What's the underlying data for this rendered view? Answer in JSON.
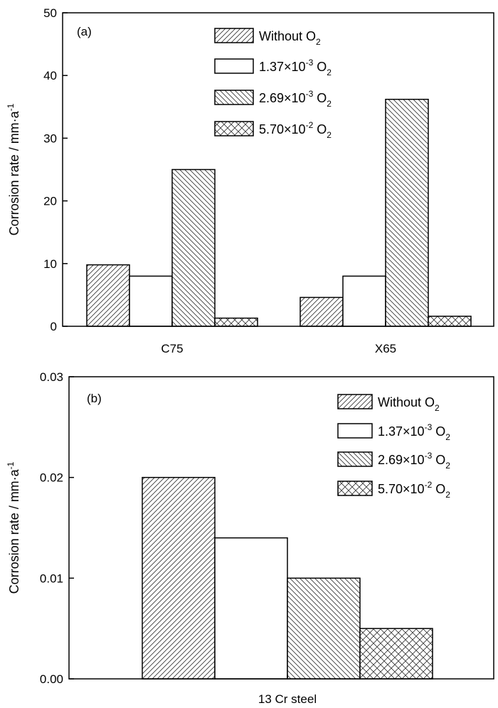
{
  "chart_data": [
    {
      "type": "bar",
      "panel_label": "(a)",
      "categories": [
        "C75",
        "X65"
      ],
      "series": [
        {
          "name": "Without O2",
          "label": {
            "base": "Without O",
            "exp": "",
            "sub": "2"
          },
          "pattern": "diag-right",
          "values": [
            9.8,
            4.6
          ]
        },
        {
          "name": "1.37×10-3 O2",
          "label": {
            "base": "1.37×10",
            "exp": "-3",
            "tail": " O",
            "sub": "2"
          },
          "pattern": "none",
          "values": [
            8.0,
            8.0
          ]
        },
        {
          "name": "2.69×10-3 O2",
          "label": {
            "base": "2.69×10",
            "exp": "-3",
            "tail": " O",
            "sub": "2"
          },
          "pattern": "diag-left",
          "values": [
            25.0,
            36.2
          ]
        },
        {
          "name": "5.70×10-2 O2",
          "label": {
            "base": "5.70×10",
            "exp": "-2",
            "tail": " O",
            "sub": "2"
          },
          "pattern": "cross",
          "values": [
            1.3,
            1.6
          ]
        }
      ],
      "ylabel": {
        "text": "Corrosion rate / mm·a",
        "exp": "-1"
      },
      "xlabel": "",
      "ylim": [
        0,
        50
      ],
      "yticks": [
        "0",
        "10",
        "20",
        "30",
        "40",
        "50"
      ],
      "ytick_values": [
        0,
        10,
        20,
        30,
        40,
        50
      ],
      "legend": "top-center",
      "grid": false
    },
    {
      "type": "bar",
      "panel_label": "(b)",
      "categories": [
        "13 Cr steel"
      ],
      "series": [
        {
          "name": "Without O2",
          "label": {
            "base": "Without O",
            "exp": "",
            "sub": "2"
          },
          "pattern": "diag-right",
          "values": [
            0.02
          ]
        },
        {
          "name": "1.37×10-3 O2",
          "label": {
            "base": "1.37×10",
            "exp": "-3",
            "tail": " O",
            "sub": "2"
          },
          "pattern": "none",
          "values": [
            0.014
          ]
        },
        {
          "name": "2.69×10-3 O2",
          "label": {
            "base": "2.69×10",
            "exp": "-3",
            "tail": " O",
            "sub": "2"
          },
          "pattern": "diag-left",
          "values": [
            0.01
          ]
        },
        {
          "name": "5.70×10-2 O2",
          "label": {
            "base": "5.70×10",
            "exp": "-2",
            "tail": " O",
            "sub": "2"
          },
          "pattern": "cross",
          "values": [
            0.005
          ]
        }
      ],
      "ylabel": {
        "text": "Corrosion rate / mm·a",
        "exp": "-1"
      },
      "xlabel": "",
      "ylim": [
        0,
        0.03
      ],
      "yticks": [
        "0.00",
        "0.01",
        "0.02",
        "0.03"
      ],
      "ytick_values": [
        0,
        0.01,
        0.02,
        0.03
      ],
      "legend": "top-right",
      "grid": false
    }
  ]
}
